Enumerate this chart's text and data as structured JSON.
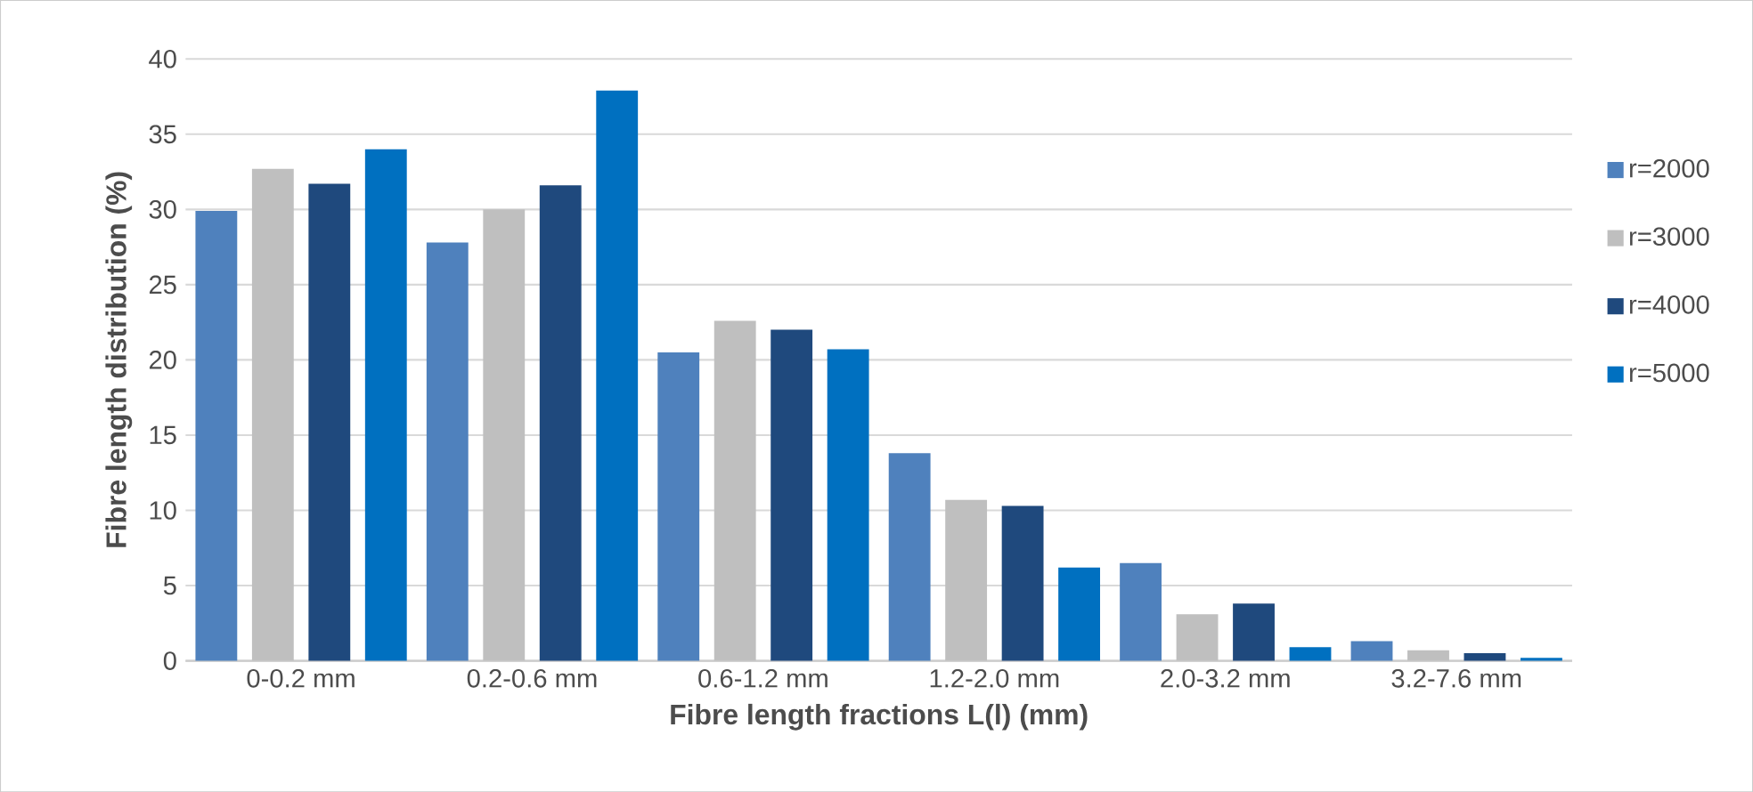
{
  "chart_data": {
    "type": "bar",
    "xlabel": "Fibre length fractions L(l) (mm)",
    "ylabel": "Fibre length distribution (%)",
    "categories": [
      "0-0.2 mm",
      "0.2-0.6 mm",
      "0.6-1.2 mm",
      "1.2-2.0 mm",
      "2.0-3.2 mm",
      "3.2-7.6 mm"
    ],
    "series": [
      {
        "name": "r=2000",
        "color": "#4f81bd",
        "values": [
          29.9,
          27.8,
          20.5,
          13.8,
          6.5,
          1.3
        ]
      },
      {
        "name": "r=3000",
        "color": "#bfbfbf",
        "values": [
          32.7,
          30.0,
          22.6,
          10.7,
          3.1,
          0.7
        ]
      },
      {
        "name": "r=4000",
        "color": "#1f497d",
        "values": [
          31.7,
          31.6,
          22.0,
          10.3,
          3.8,
          0.5
        ]
      },
      {
        "name": "r=5000",
        "color": "#0070c0",
        "values": [
          34.0,
          37.9,
          20.7,
          6.2,
          0.9,
          0.2
        ]
      }
    ],
    "ylim": [
      0,
      40
    ],
    "yticks": [
      0,
      5,
      10,
      15,
      20,
      25,
      30,
      35,
      40
    ],
    "grid": "y",
    "legend": "right"
  }
}
